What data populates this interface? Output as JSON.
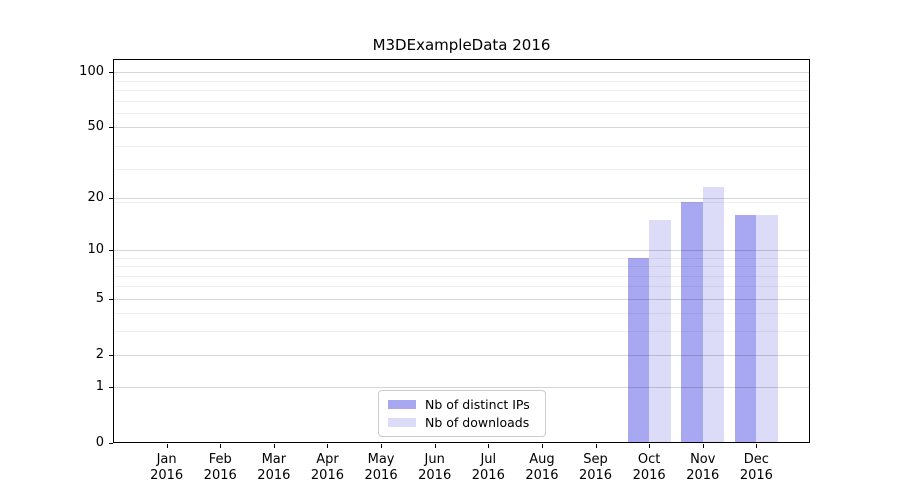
{
  "window": {
    "background": "#ffffff"
  },
  "chart_data": {
    "type": "bar",
    "title": "M3DExampleData 2016",
    "categories": [
      "Jan",
      "Feb",
      "Mar",
      "Apr",
      "May",
      "Jun",
      "Jul",
      "Aug",
      "Sep",
      "Oct",
      "Nov",
      "Dec"
    ],
    "category_year": "2016",
    "series": [
      {
        "name": "Nb of distinct IPs",
        "color": "#a8a8f2",
        "values": [
          0,
          0,
          0,
          0,
          0,
          0,
          0,
          0,
          0,
          9,
          19,
          16
        ]
      },
      {
        "name": "Nb of downloads",
        "color": "#dcdcf8",
        "values": [
          0,
          0,
          0,
          0,
          0,
          0,
          0,
          0,
          0,
          15,
          23,
          16
        ]
      }
    ],
    "xlabel": "",
    "ylabel": "",
    "yscale": "log1p",
    "ylim": [
      0,
      117
    ],
    "yticks": [
      0,
      1,
      2,
      5,
      10,
      20,
      50,
      100
    ],
    "yticks_minor": [
      3,
      4,
      6,
      7,
      8,
      9,
      19,
      29,
      39,
      59,
      69,
      79,
      89
    ],
    "grid": "horizontal",
    "legend_position": "lower center"
  },
  "colors": {
    "grid_major": "rgba(0,0,0,0.16)",
    "grid_minor": "rgba(0,0,0,0.06)",
    "axis_frame": "#000000",
    "legend_border": "#cccccc",
    "text": "#000000"
  }
}
